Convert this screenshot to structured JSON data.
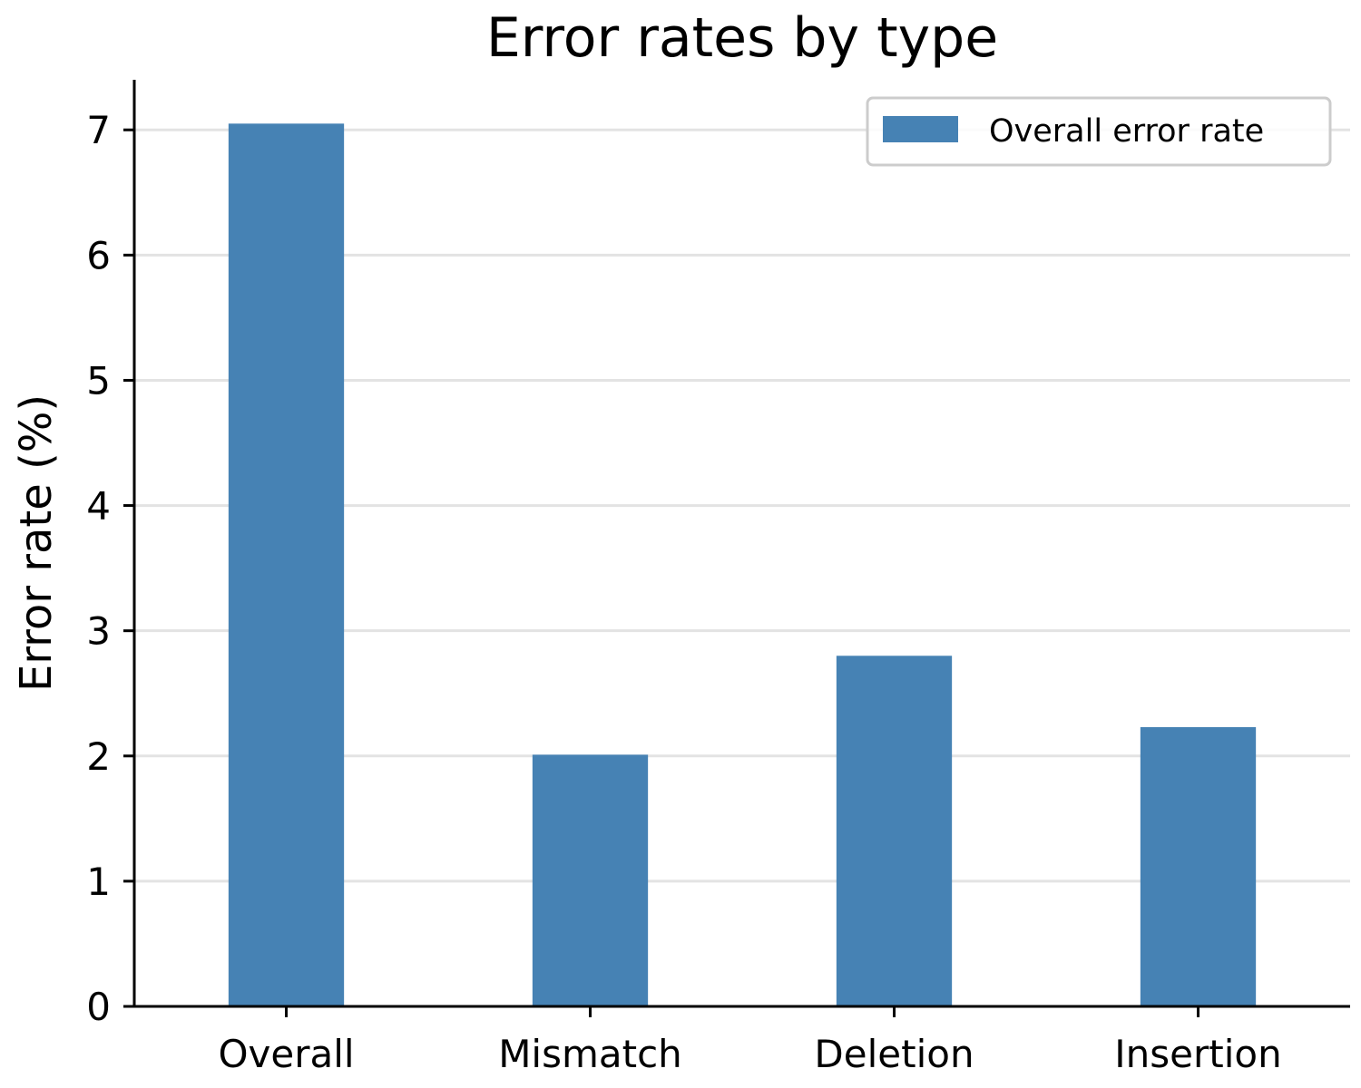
{
  "chart_data": {
    "type": "bar",
    "title": "Error rates by type",
    "xlabel": "",
    "ylabel": "Error rate (%)",
    "categories": [
      "Overall",
      "Mismatch",
      "Deletion",
      "Insertion"
    ],
    "series": [
      {
        "name": "Overall error rate",
        "values": [
          7.05,
          2.01,
          2.8,
          2.23
        ],
        "color": "#4682b4"
      }
    ],
    "ylim": [
      0,
      7.4
    ],
    "yticks": [
      "0",
      "1",
      "2",
      "3",
      "4",
      "5",
      "6",
      "7"
    ],
    "grid": "horizontal",
    "legend": "top-right"
  }
}
